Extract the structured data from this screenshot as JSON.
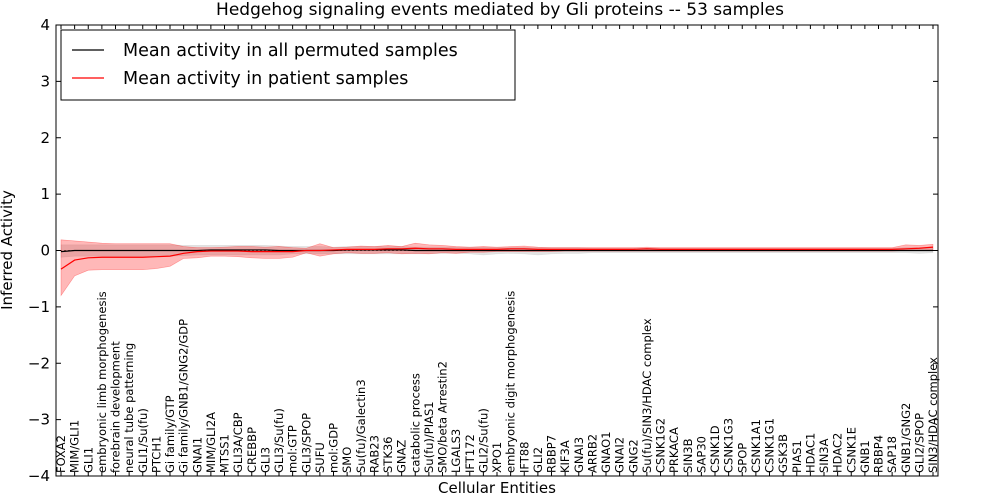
{
  "chart_data": {
    "type": "line",
    "title": "Hedgehog signaling events mediated by Gli proteins -- 53 samples",
    "xlabel": "Cellular Entities",
    "ylabel": "Inferred Activity",
    "ylim": [
      -4,
      4
    ],
    "yticks": [
      -4,
      -3,
      -2,
      -1,
      0,
      1,
      2,
      3,
      4
    ],
    "ytick_labels": [
      "−4",
      "−3",
      "−2",
      "−1",
      "0",
      "1",
      "2",
      "3",
      "4"
    ],
    "legend_position": "top-left",
    "categories": [
      "FOXA2",
      "MIM/GLI1",
      "GLI1",
      "embryonic limb morphogenesis",
      "forebrain development",
      "neural tube patterning",
      "GLI1/Su(fu)",
      "PTCH1",
      "Gi family/GTP",
      "Gi family/GNB1/GNG2/GDP",
      "GNAI1",
      "MIM/GLI2A",
      "MTSS1",
      "GLI3A/CBP",
      "CREBBP",
      "GLI3",
      "GLI3/Su(fu)",
      "mol:GTP",
      "GLI3/SPOP",
      "SUFU",
      "mol:GDP",
      "SMO",
      "Su(fu)/Galectin3",
      "RAB23",
      "STK36",
      "GNAZ",
      "catabolic process",
      "Su(fu)/PIAS1",
      "SMO/beta Arrestin2",
      "LGALS3",
      "IFT172",
      "GLI2/Su(fu)",
      "XPO1",
      "embryonic digit morphogenesis",
      "IFT88",
      "GLI2",
      "RBBP7",
      "KIF3A",
      "GNAI3",
      "ARRB2",
      "GNAO1",
      "GNAI2",
      "GNG2",
      "Su(fu)/SIN3/HDAC complex",
      "CSNK1G2",
      "PRKACA",
      "SIN3B",
      "SAP30",
      "CSNK1D",
      "CSNK1G3",
      "SPOP",
      "CSNK1A1",
      "CSNK1G1",
      "GSK3B",
      "PIAS1",
      "HDAC1",
      "SIN3A",
      "HDAC2",
      "CSNK1E",
      "GNB1",
      "RBBP4",
      "SAP18",
      "GNB1/GNG2",
      "GLI2/SPOP",
      "SIN3/HDAC complex"
    ],
    "series": [
      {
        "name": "Mean activity in all permuted samples",
        "color": "#000000",
        "band_color": "#b0b0b0",
        "values": [
          -0.02,
          0.0,
          0.0,
          0.0,
          0.0,
          0.0,
          0.0,
          0.0,
          0.0,
          0.0,
          0.0,
          0.01,
          0.01,
          0.01,
          0.01,
          0.01,
          0.0,
          0.0,
          0.0,
          0.0,
          0.0,
          0.01,
          0.01,
          0.01,
          0.01,
          0.01,
          0.0,
          0.0,
          0.0,
          0.0,
          0.0,
          0.0,
          0.0,
          0.0,
          0.0,
          0.0,
          0.0,
          0.0,
          0.0,
          0.0,
          0.0,
          0.0,
          0.0,
          0.0,
          0.0,
          0.0,
          0.0,
          0.0,
          0.0,
          0.0,
          0.0,
          0.0,
          0.0,
          0.0,
          0.0,
          0.0,
          0.0,
          0.0,
          0.0,
          0.0,
          0.0,
          0.0,
          0.0,
          0.0,
          0.0
        ],
        "lower": [
          -0.12,
          -0.1,
          -0.1,
          -0.1,
          -0.1,
          -0.1,
          -0.1,
          -0.1,
          -0.1,
          -0.09,
          -0.08,
          -0.08,
          -0.08,
          -0.08,
          -0.08,
          -0.08,
          -0.08,
          -0.06,
          -0.06,
          -0.06,
          -0.06,
          -0.06,
          -0.06,
          -0.06,
          -0.06,
          -0.06,
          -0.06,
          -0.06,
          -0.05,
          -0.05,
          -0.06,
          -0.08,
          -0.06,
          -0.05,
          -0.06,
          -0.08,
          -0.06,
          -0.05,
          -0.05,
          -0.04,
          -0.04,
          -0.04,
          -0.04,
          -0.04,
          -0.04,
          -0.04,
          -0.04,
          -0.04,
          -0.04,
          -0.04,
          -0.04,
          -0.04,
          -0.04,
          -0.04,
          -0.04,
          -0.04,
          -0.04,
          -0.04,
          -0.04,
          -0.04,
          -0.04,
          -0.04,
          -0.04,
          -0.05,
          -0.04
        ],
        "upper": [
          0.1,
          0.1,
          0.1,
          0.1,
          0.1,
          0.1,
          0.1,
          0.1,
          0.1,
          0.09,
          0.09,
          0.09,
          0.09,
          0.09,
          0.09,
          0.09,
          0.08,
          0.07,
          0.07,
          0.07,
          0.06,
          0.07,
          0.07,
          0.07,
          0.07,
          0.07,
          0.06,
          0.06,
          0.06,
          0.06,
          0.06,
          0.06,
          0.05,
          0.05,
          0.05,
          0.05,
          0.05,
          0.05,
          0.05,
          0.04,
          0.04,
          0.04,
          0.04,
          0.04,
          0.04,
          0.04,
          0.04,
          0.04,
          0.04,
          0.04,
          0.04,
          0.04,
          0.04,
          0.04,
          0.04,
          0.04,
          0.04,
          0.04,
          0.04,
          0.04,
          0.04,
          0.04,
          0.05,
          0.05,
          0.05
        ]
      },
      {
        "name": "Mean activity in patient samples",
        "color": "#ff0000",
        "band_color": "#ff0000",
        "values": [
          -0.33,
          -0.17,
          -0.13,
          -0.12,
          -0.12,
          -0.12,
          -0.12,
          -0.11,
          -0.1,
          -0.05,
          -0.02,
          -0.01,
          -0.01,
          -0.01,
          -0.02,
          -0.02,
          -0.02,
          -0.02,
          0.0,
          0.0,
          0.01,
          0.02,
          0.02,
          0.02,
          0.03,
          0.03,
          0.04,
          0.03,
          0.03,
          0.02,
          0.02,
          0.02,
          0.02,
          0.03,
          0.03,
          0.02,
          0.02,
          0.02,
          0.02,
          0.02,
          0.02,
          0.02,
          0.02,
          0.03,
          0.02,
          0.02,
          0.02,
          0.02,
          0.02,
          0.02,
          0.02,
          0.02,
          0.02,
          0.02,
          0.02,
          0.02,
          0.02,
          0.02,
          0.02,
          0.02,
          0.02,
          0.02,
          0.03,
          0.04,
          0.06
        ],
        "lower": [
          -0.8,
          -0.45,
          -0.35,
          -0.34,
          -0.34,
          -0.34,
          -0.34,
          -0.32,
          -0.28,
          -0.14,
          -0.13,
          -0.1,
          -0.1,
          -0.11,
          -0.13,
          -0.14,
          -0.14,
          -0.12,
          -0.04,
          -0.1,
          -0.06,
          -0.04,
          -0.05,
          -0.05,
          -0.04,
          -0.06,
          -0.05,
          -0.06,
          -0.04,
          -0.05,
          -0.03,
          -0.03,
          -0.02,
          -0.02,
          -0.02,
          -0.02,
          -0.02,
          -0.01,
          -0.01,
          -0.01,
          -0.01,
          -0.01,
          -0.01,
          -0.01,
          -0.01,
          -0.01,
          -0.01,
          -0.01,
          -0.01,
          -0.01,
          -0.01,
          -0.01,
          -0.01,
          -0.01,
          -0.01,
          -0.01,
          -0.01,
          -0.01,
          -0.01,
          -0.01,
          -0.01,
          -0.01,
          0.0,
          0.0,
          0.01
        ],
        "upper": [
          0.19,
          0.17,
          0.15,
          0.13,
          0.12,
          0.12,
          0.12,
          0.12,
          0.12,
          0.07,
          0.05,
          0.05,
          0.06,
          0.07,
          0.07,
          0.06,
          0.07,
          0.05,
          0.04,
          0.12,
          0.05,
          0.06,
          0.08,
          0.07,
          0.09,
          0.07,
          0.13,
          0.1,
          0.09,
          0.07,
          0.06,
          0.07,
          0.06,
          0.07,
          0.08,
          0.06,
          0.05,
          0.05,
          0.05,
          0.05,
          0.05,
          0.05,
          0.05,
          0.06,
          0.05,
          0.05,
          0.05,
          0.05,
          0.05,
          0.05,
          0.05,
          0.05,
          0.05,
          0.05,
          0.05,
          0.05,
          0.05,
          0.05,
          0.05,
          0.05,
          0.05,
          0.05,
          0.1,
          0.09,
          0.11
        ]
      }
    ]
  }
}
